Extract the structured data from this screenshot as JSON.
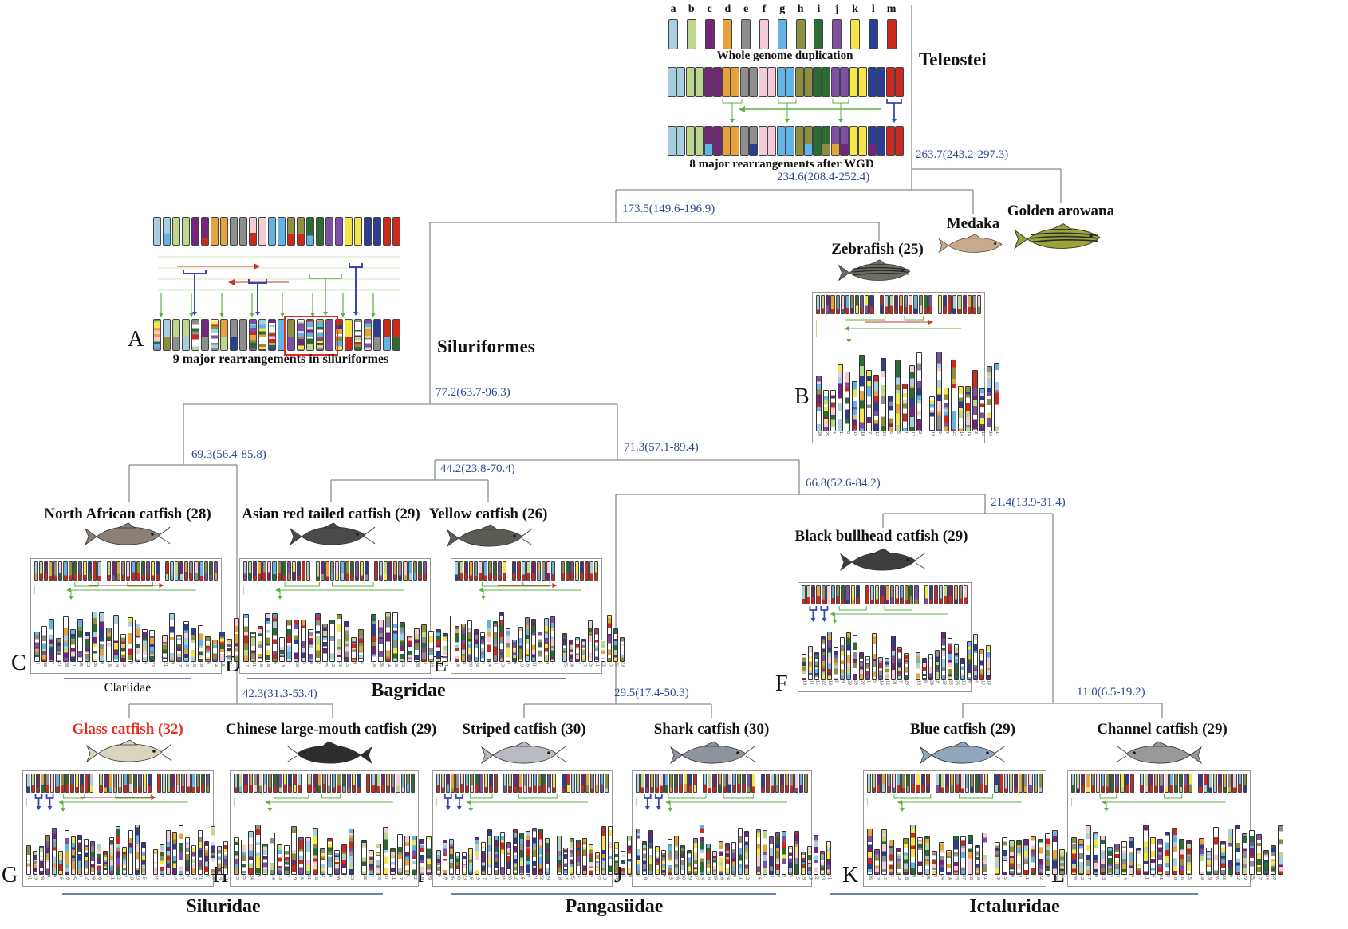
{
  "teleostei": {
    "clade_label": "Teleostei",
    "chromosome_letters": [
      "a",
      "b",
      "c",
      "d",
      "e",
      "f",
      "g",
      "h",
      "i",
      "j",
      "k",
      "l",
      "m"
    ],
    "wgd_caption": "Whole genome duplication",
    "post_wgd_caption": "8 major rearrangements after WGD"
  },
  "siluriformes": {
    "panel_letter": "A",
    "caption": "9 major rearrangements in siluriformes",
    "clade_label": "Siluriformes"
  },
  "outgroups": [
    {
      "label": "Medaka",
      "fish_color": "#c9a98b"
    },
    {
      "label": "Golden arowana",
      "fish_color": "#9aa23a"
    }
  ],
  "zebrafish": {
    "label": "Zebrafish (25)",
    "panel_letter": "B",
    "fish_color": "#6a6f62"
  },
  "divergence_times": {
    "root": "263.7(243.2-297.3)",
    "medaka": "234.6(208.4-252.4)",
    "zebrafish": "173.5(149.6-196.9)",
    "siluriformes": "77.2(63.7-96.3)",
    "clariidae_siluridae": "69.3(56.4-85.8)",
    "siluridae": "42.3(31.3-53.4)",
    "bagridae_rest": "71.3(57.1-89.4)",
    "bagridae": "44.2(23.8-70.4)",
    "pangasiidae_ictaluridae": "66.8(52.6-84.2)",
    "pangasiidae": "29.5(17.4-50.3)",
    "ictaluridae_stem": "21.4(13.9-31.4)",
    "ictaluridae_crown": "11.0(6.5-19.2)"
  },
  "species": [
    {
      "label": "North African catfish (28)",
      "panel_letter": "C",
      "chromosomes": 28,
      "fish_color": "#8a8078"
    },
    {
      "label": "Asian red tailed catfish (29)",
      "panel_letter": "D",
      "chromosomes": 29,
      "fish_color": "#4a4a4a"
    },
    {
      "label": "Yellow catfish (26)",
      "panel_letter": "E",
      "chromosomes": 26,
      "fish_color": "#5c5c54"
    },
    {
      "label": "Black bullhead catfish (29)",
      "panel_letter": "F",
      "chromosomes": 29,
      "fish_color": "#3e3e3e"
    },
    {
      "label": "Glass catfish (32)",
      "panel_letter": "G",
      "chromosomes": 32,
      "fish_color": "#d8d4c0",
      "label_color": "#e8291c"
    },
    {
      "label": "Chinese large-mouth catfish (29)",
      "panel_letter": "H",
      "chromosomes": 29,
      "fish_color": "#2e2e2e"
    },
    {
      "label": "Striped catfish (30)",
      "panel_letter": "I",
      "chromosomes": 30,
      "fish_color": "#b8bcc0"
    },
    {
      "label": "Shark catfish (30)",
      "panel_letter": "J",
      "chromosomes": 30,
      "fish_color": "#8e959d"
    },
    {
      "label": "Blue catfish (29)",
      "panel_letter": "K",
      "chromosomes": 29,
      "fish_color": "#8fa6bc"
    },
    {
      "label": "Channel catfish (29)",
      "panel_letter": "L",
      "chromosomes": 29,
      "fish_color": "#9a9a98"
    }
  ],
  "families": [
    {
      "name": "Clariidae"
    },
    {
      "name": "Bagridae"
    },
    {
      "name": "Siluridae"
    },
    {
      "name": "Pangasiidae"
    },
    {
      "name": "Ictaluridae"
    }
  ],
  "colors": {
    "divergence_text": "#2e4a96",
    "tree_line": "#8c8c8c",
    "family_line": "#6b82b4",
    "highlight_red": "#e8291c",
    "arrow_green": "#5faf44",
    "arrow_blue": "#3648b0",
    "arrow_red": "#cf3327",
    "chromosome_palette": [
      "#a8cfe0",
      "#bdd78e",
      "#722579",
      "#e6a23c",
      "#8e8e8e",
      "#f3cbd9",
      "#62b4e6",
      "#8e8e40",
      "#2c6a36",
      "#7e4fa5",
      "#f3e64a",
      "#2c3e92",
      "#cc2a1f"
    ]
  }
}
